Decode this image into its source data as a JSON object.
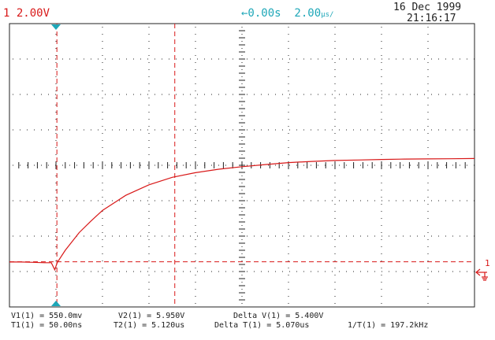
{
  "header": {
    "channel_scale": "1 2.00V",
    "timebase": "←0.00s  2.00",
    "timebase_unit": "µs/",
    "date": "16 Dec 1999",
    "time": "21:16:17"
  },
  "colors": {
    "trace": "#d81818",
    "cursor": "#d81818",
    "marker": "#1ea7b8",
    "grid": "#202020",
    "ground": "#d81818"
  },
  "icons": {
    "trigger_marker": "triangle-marker-icon",
    "ground_marker": "ground-arrow-icon"
  },
  "ground_marker_label": "1",
  "measurements": {
    "v1": "V1(1) = 550.0mv",
    "v2": "V2(1) = 5.950V",
    "delta_v": "Delta V(1) = 5.400V",
    "t1": "T1(1) = 50.00ns",
    "t2": "T2(1) = 5.120us",
    "delta_t": "Delta T(1) = 5.070us",
    "inverse_t": "1/T(1) = 197.2kHz"
  },
  "chart_data": {
    "type": "line",
    "xlabel": "",
    "ylabel": "",
    "xlim": [
      -10,
      10
    ],
    "ylim": [
      -8,
      8
    ],
    "grid": true,
    "series": [
      {
        "x": [
          -10,
          -9.5,
          -9.0,
          -8.5,
          -8.2,
          -8.05,
          -7.95,
          -7.6,
          -7.0,
          -6.5,
          -6.0,
          -5.0,
          -4.0,
          -3.0,
          -2.0,
          -1.0,
          0.0,
          1.0,
          2.0,
          3.0,
          4.0,
          5.0,
          6.0,
          7.0,
          8.0,
          9.0,
          10.0
        ],
        "values": [
          -5.46,
          -5.46,
          -5.48,
          -5.5,
          -5.5,
          -5.9,
          -5.5,
          -4.8,
          -3.8,
          -3.15,
          -2.55,
          -1.7,
          -1.1,
          -0.68,
          -0.42,
          -0.22,
          -0.08,
          0.04,
          0.15,
          0.22,
          0.27,
          0.3,
          0.33,
          0.35,
          0.36,
          0.37,
          0.38
        ]
      }
    ],
    "cursors": {
      "v1": 0.55,
      "v2": 5.95,
      "t1": 0.05,
      "t2": 5.12
    }
  }
}
